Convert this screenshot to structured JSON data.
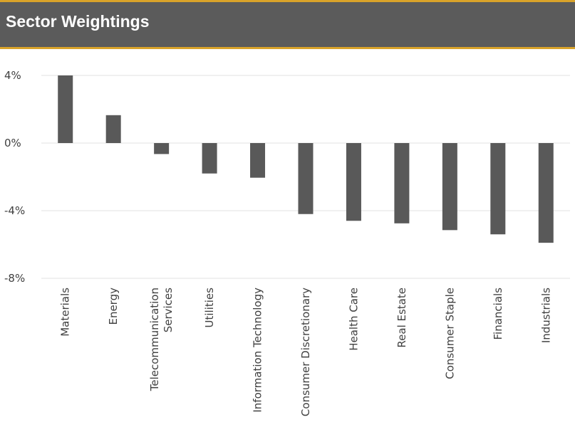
{
  "header": {
    "title": "Sector Weightings"
  },
  "colors": {
    "header_bg": "#5b5b5b",
    "accent": "#d9a32a",
    "bar": "#595959",
    "grid": "#e0e0e0"
  },
  "chart_data": {
    "type": "bar",
    "title": "Sector Weightings",
    "categories": [
      [
        "Materials"
      ],
      [
        "Energy"
      ],
      [
        "Telecommunication",
        "Services"
      ],
      [
        "Utilities"
      ],
      [
        "Information Technology"
      ],
      [
        "Consumer Discretionary"
      ],
      [
        "Health Care"
      ],
      [
        "Real Estate"
      ],
      [
        "Consumer Staple"
      ],
      [
        "Financials"
      ],
      [
        "Industrials"
      ]
    ],
    "values": [
      4.0,
      1.65,
      -0.65,
      -1.8,
      -2.05,
      -4.2,
      -4.6,
      -4.75,
      -5.15,
      -5.4,
      -5.9
    ],
    "yticks": [
      4,
      0,
      -4,
      -8
    ],
    "ytick_labels": [
      "4%",
      "0%",
      "-4%",
      "-8%"
    ],
    "ylim": [
      -8,
      4
    ],
    "grid": true,
    "legend": "none"
  }
}
